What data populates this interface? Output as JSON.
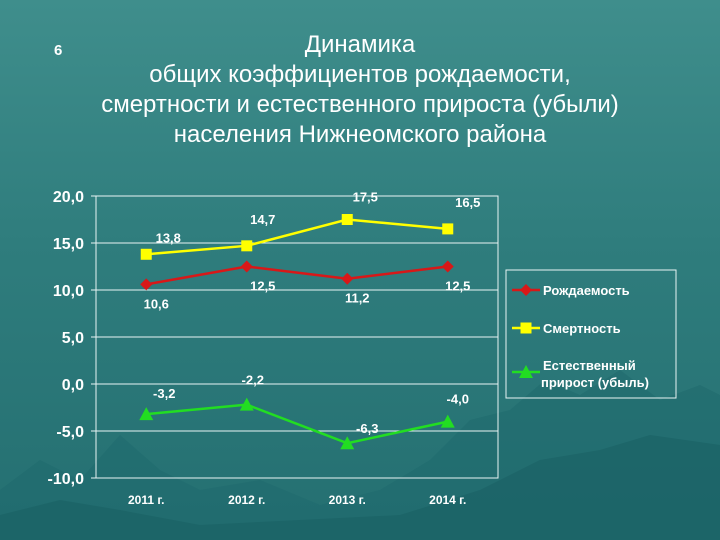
{
  "slide": {
    "number": "6",
    "title_lines": [
      "Динамика",
      "общих коэффициентов рождаемости,",
      "смертности и естественного прироста (убыли)",
      "населения Нижнеомского района"
    ]
  },
  "chart_data": {
    "type": "line",
    "categories": [
      "2011 г.",
      "2012 г.",
      "2013 г.",
      "2014 г."
    ],
    "ylim": [
      -10,
      20
    ],
    "yticks": [
      "20,0",
      "15,0",
      "10,0",
      "5,0",
      "0,0",
      "-5,0",
      "-10,0"
    ],
    "ytick_values": [
      20,
      15,
      10,
      5,
      0,
      -5,
      -10
    ],
    "grid": "horizontal",
    "legend_position": "right",
    "series": [
      {
        "name": "Рождаемость",
        "values": [
          10.6,
          12.5,
          11.2,
          12.5
        ],
        "labels": [
          "10,6",
          "12,5",
          "11,2",
          "12,5"
        ],
        "color": "#d81818",
        "marker": "diamond"
      },
      {
        "name": "Смертность",
        "values": [
          13.8,
          14.7,
          17.5,
          16.5
        ],
        "labels": [
          "13,8",
          "14,7",
          "17,5",
          "16,5"
        ],
        "color": "#ffff00",
        "marker": "square"
      },
      {
        "name": "Естественный прирост (убыль)",
        "legend_lines": [
          "Естественный",
          "прирост (убыль)"
        ],
        "values": [
          -3.2,
          -2.2,
          -6.3,
          -4.0
        ],
        "labels": [
          "-3,2",
          "-2,2",
          "-6,3",
          "-4,0"
        ],
        "color": "#22dd22",
        "marker": "triangle"
      }
    ]
  }
}
